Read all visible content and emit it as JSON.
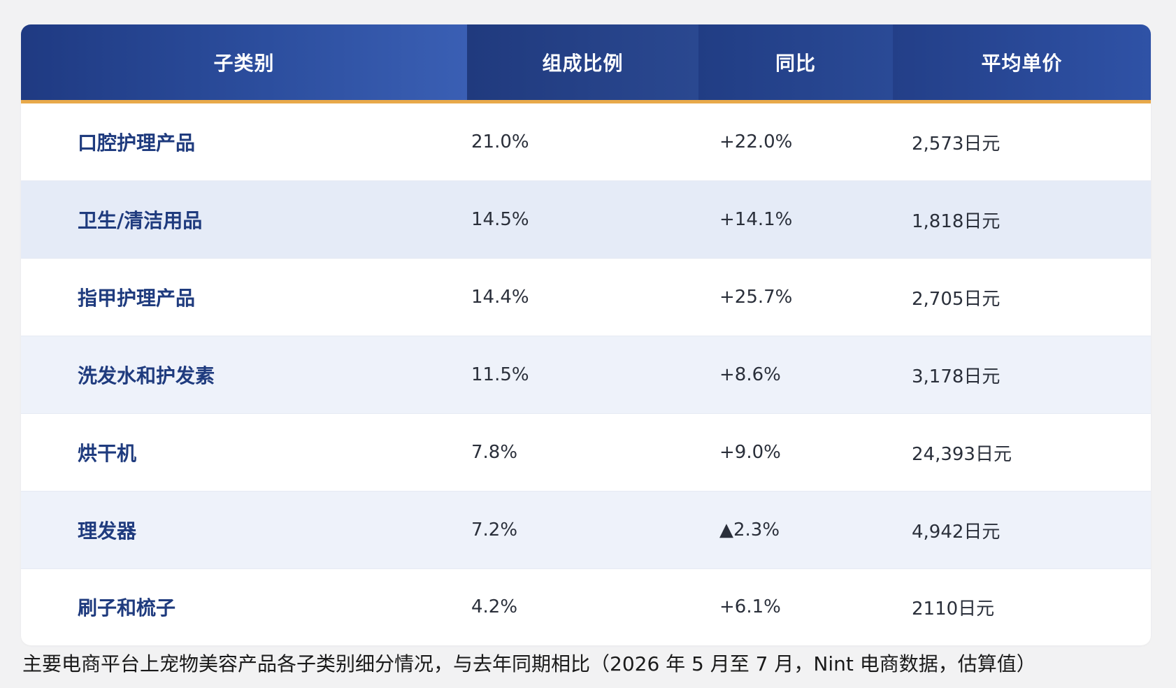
{
  "table": {
    "headers": [
      "子类别",
      "组成比例",
      "同比",
      "平均单价"
    ],
    "rows": [
      {
        "name": "口腔护理产品",
        "share": "21.0%",
        "yoy": "+22.0%",
        "price": "2,573日元"
      },
      {
        "name": "卫生/清洁用品",
        "share": "14.5%",
        "yoy": "+14.1%",
        "price": "1,818日元"
      },
      {
        "name": "指甲护理产品",
        "share": "14.4%",
        "yoy": "+25.7%",
        "price": "2,705日元"
      },
      {
        "name": "洗发水和护发素",
        "share": "11.5%",
        "yoy": "+8.6%",
        "price": "3,178日元"
      },
      {
        "name": "烘干机",
        "share": "7.8%",
        "yoy": "+9.0%",
        "price": "24,393日元"
      },
      {
        "name": "理发器",
        "share": "7.2%",
        "yoy": "▲2.3%",
        "price": "4,942日元"
      },
      {
        "name": "刷子和梳子",
        "share": "4.2%",
        "yoy": "+6.1%",
        "price": "2110日元"
      }
    ]
  },
  "caption": "主要电商平台上宠物美容产品各子类别细分情况，与去年同期相比（2026 年 5 月至 7 月，Nint 电商数据，估算值）",
  "colors": {
    "header_bg": "#2a4a96",
    "header_accent_border": "#e8a94a",
    "name_text": "#1f3b7e",
    "alt_row_bg": "#e5ebf7"
  }
}
